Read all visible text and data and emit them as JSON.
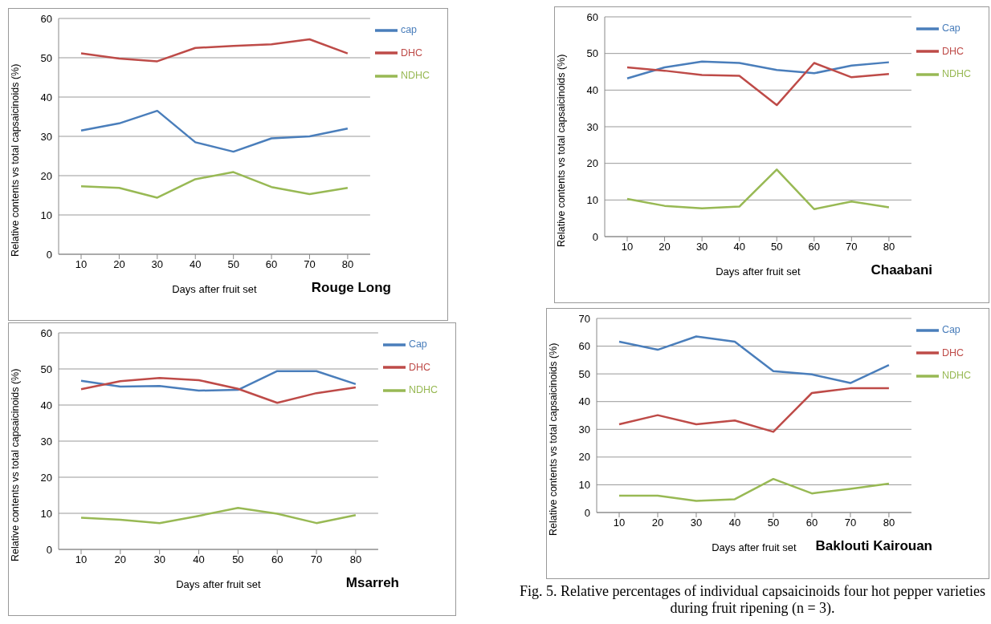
{
  "chart_data": [
    {
      "type": "line",
      "title": "Rouge Long",
      "xlabel": "Days after fruit set",
      "ylabel": "Relative contents vs total capsaicinoids (%)",
      "categories": [
        "10",
        "20",
        "30",
        "40",
        "50",
        "60",
        "70",
        "80"
      ],
      "ylim": [
        0,
        60
      ],
      "yticks": [
        0,
        10,
        20,
        30,
        40,
        50,
        60
      ],
      "grid": "y",
      "legend": "top right",
      "marker": "none",
      "line_style": "solid",
      "series": [
        {
          "name": "cap",
          "color": "#4a7ebb",
          "values": [
            31.5,
            33.3,
            36.5,
            28.5,
            26.1,
            29.5,
            30,
            32
          ]
        },
        {
          "name": "DHC",
          "color": "#be4b48",
          "values": [
            51.1,
            49.8,
            49.1,
            52.5,
            53,
            53.4,
            54.7,
            51.1
          ]
        },
        {
          "name": "NDHC",
          "color": "#98b954",
          "values": [
            17.3,
            16.9,
            14.4,
            19.1,
            20.9,
            17.1,
            15.3,
            16.9
          ]
        }
      ]
    },
    {
      "type": "line",
      "title": "Chaabani",
      "xlabel": "Days after fruit set",
      "ylabel": "Relative contents vs total capsaicinoids (%)",
      "categories": [
        "10",
        "20",
        "30",
        "40",
        "50",
        "60",
        "70",
        "80"
      ],
      "ylim": [
        0,
        60
      ],
      "yticks": [
        0,
        10,
        20,
        30,
        40,
        50,
        60
      ],
      "grid": "y",
      "legend": "top right",
      "marker": "none",
      "line_style": "solid",
      "series": [
        {
          "name": "Cap",
          "color": "#4a7ebb",
          "values": [
            43.2,
            46.2,
            47.8,
            47.4,
            45.5,
            44.6,
            46.7,
            47.6
          ]
        },
        {
          "name": "DHC",
          "color": "#be4b48",
          "values": [
            46.2,
            45.3,
            44.1,
            43.9,
            35.9,
            47.4,
            43.5,
            44.4
          ]
        },
        {
          "name": "NDHC",
          "color": "#98b954",
          "values": [
            10.3,
            8.4,
            7.7,
            8.2,
            18.3,
            7.5,
            9.6,
            8
          ]
        }
      ]
    },
    {
      "type": "line",
      "title": "Msarreh",
      "xlabel": "Days after fruit set",
      "ylabel": "Relative contents vs total capsaicinoids (%)",
      "categories": [
        "10",
        "20",
        "30",
        "40",
        "50",
        "60",
        "70",
        "80"
      ],
      "ylim": [
        0,
        60
      ],
      "yticks": [
        0,
        10,
        20,
        30,
        40,
        50,
        60
      ],
      "grid": "y",
      "legend": "top right",
      "marker": "none",
      "line_style": "solid",
      "series": [
        {
          "name": "Cap",
          "color": "#4a7ebb",
          "values": [
            46.7,
            45.1,
            45.3,
            44,
            44.2,
            49.4,
            49.4,
            45.8
          ]
        },
        {
          "name": "DHC",
          "color": "#be4b48",
          "values": [
            44.4,
            46.6,
            47.5,
            46.9,
            44.5,
            40.6,
            43.3,
            44.9
          ]
        },
        {
          "name": "NDHC",
          "color": "#98b954",
          "values": [
            8.8,
            8.2,
            7.3,
            9.3,
            11.5,
            9.9,
            7.3,
            9.5
          ]
        }
      ]
    },
    {
      "type": "line",
      "title": "Baklouti Kairouan",
      "xlabel": "Days after fruit set",
      "ylabel": "Relative contents vs total capsaicinoids (%)",
      "categories": [
        "10",
        "20",
        "30",
        "40",
        "50",
        "60",
        "70",
        "80"
      ],
      "ylim": [
        0,
        70
      ],
      "yticks": [
        0,
        10,
        20,
        30,
        40,
        50,
        60,
        70
      ],
      "grid": "y",
      "legend": "top right",
      "marker": "none",
      "line_style": "solid",
      "annotations": [
        "Fig. 5. Relative percentages of individual capsaicinoids four hot pepper varieties during fruit ripening (n = 3)."
      ],
      "series": [
        {
          "name": "Cap",
          "color": "#4a7ebb",
          "values": [
            61.6,
            58.7,
            63.5,
            61.6,
            51,
            49.8,
            46.7,
            53.2
          ]
        },
        {
          "name": "DHC",
          "color": "#be4b48",
          "values": [
            31.8,
            35.1,
            31.8,
            33.2,
            29.1,
            43.1,
            44.8,
            44.8
          ]
        },
        {
          "name": "NDHC",
          "color": "#98b954",
          "values": [
            6.1,
            6.1,
            4.2,
            4.8,
            12.1,
            6.9,
            8.5,
            10.4
          ]
        }
      ]
    }
  ]
}
